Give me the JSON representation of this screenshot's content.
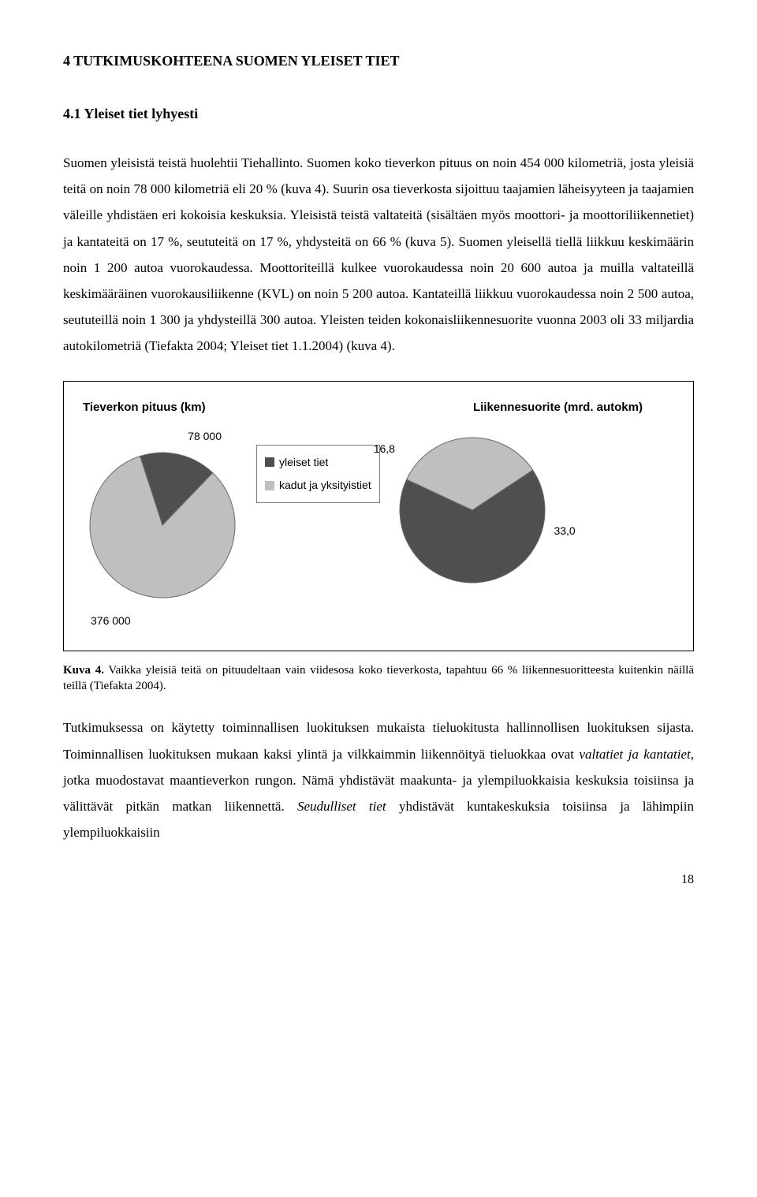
{
  "heading1": "4 TUTKIMUSKOHTEENA SUOMEN YLEISET TIET",
  "heading2": "4.1 Yleiset tiet lyhyesti",
  "para1": "Suomen yleisistä teistä huolehtii Tiehallinto. Suomen koko tieverkon pituus on noin 454 000 kilometriä, josta yleisiä teitä on noin 78 000 kilometriä eli 20 % (kuva 4). Suurin osa tieverkosta sijoittuu taajamien läheisyyteen ja taajamien väleille yhdistäen eri kokoisia keskuksia. Yleisistä teistä valtateitä (sisältäen myös moottori- ja moottoriliikennetiet) ja kantateitä on 17 %, seututeitä on 17 %, yhdysteitä on 66 % (kuva 5). Suomen yleisellä tiellä liikkuu keskimäärin noin 1 200 autoa vuorokaudessa. Moottoriteillä kulkee vuorokaudessa noin 20 600 autoa ja muilla valtateillä keskimääräinen vuorokausiliikenne (KVL) on noin 5 200 autoa. Kantateillä liikkuu vuorokaudessa noin 2 500 autoa, seututeillä noin 1 300 ja yhdysteillä 300 autoa. Yleisten teiden kokonaisliikennesuorite vuonna 2003 oli 33 miljardia autokilometriä (Tiefakta 2004; Yleiset tiet 1.1.2004) (kuva 4).",
  "chart": {
    "left_title": "Tieverkon pituus (km)",
    "right_title": "Liikennesuorite (mrd. autokm)",
    "pie1": {
      "labels": [
        "78 000",
        "376 000"
      ],
      "values": [
        78000,
        376000
      ],
      "colors": [
        "#4f4f4f",
        "#bfbfbf"
      ],
      "radius": 92,
      "stroke": "#6a6a6a"
    },
    "pie2": {
      "labels": [
        "16,8",
        "33,0"
      ],
      "values": [
        16.8,
        33.0
      ],
      "colors": [
        "#bfbfbf",
        "#4f4f4f"
      ],
      "radius": 92,
      "stroke": "#6a6a6a"
    },
    "legend": [
      {
        "label": "yleiset tiet",
        "color": "#4f4f4f"
      },
      {
        "label": "kadut ja yksityistiet",
        "color": "#bfbfbf"
      }
    ]
  },
  "caption_bold": "Kuva 4.",
  "caption_text": " Vaikka yleisiä teitä on pituudeltaan vain viidesosa koko tieverkosta, tapahtuu 66 % liikennesuoritteesta kuitenkin näillä teillä (Tiefakta 2004).",
  "para2_a": "Tutkimuksessa on käytetty toiminnallisen luokituksen mukaista tieluokitusta hallinnollisen luokituksen sijasta. Toiminnallisen luokituksen mukaan kaksi ylintä ja vilkkaimmin liikennöityä tieluokkaa ovat ",
  "para2_i1": "valtatiet ja kantatiet",
  "para2_b": ", jotka muodostavat maantieverkon rungon. Nämä yhdistävät maakunta- ja ylempiluokkaisia keskuksia toisiinsa ja välittävät pitkän matkan liikennettä. ",
  "para2_i2": "Seudulliset tiet",
  "para2_c": " yhdistävät kuntakeskuksia toisiinsa ja lähimpiin ylempiluokkaisiin",
  "page_number": "18"
}
